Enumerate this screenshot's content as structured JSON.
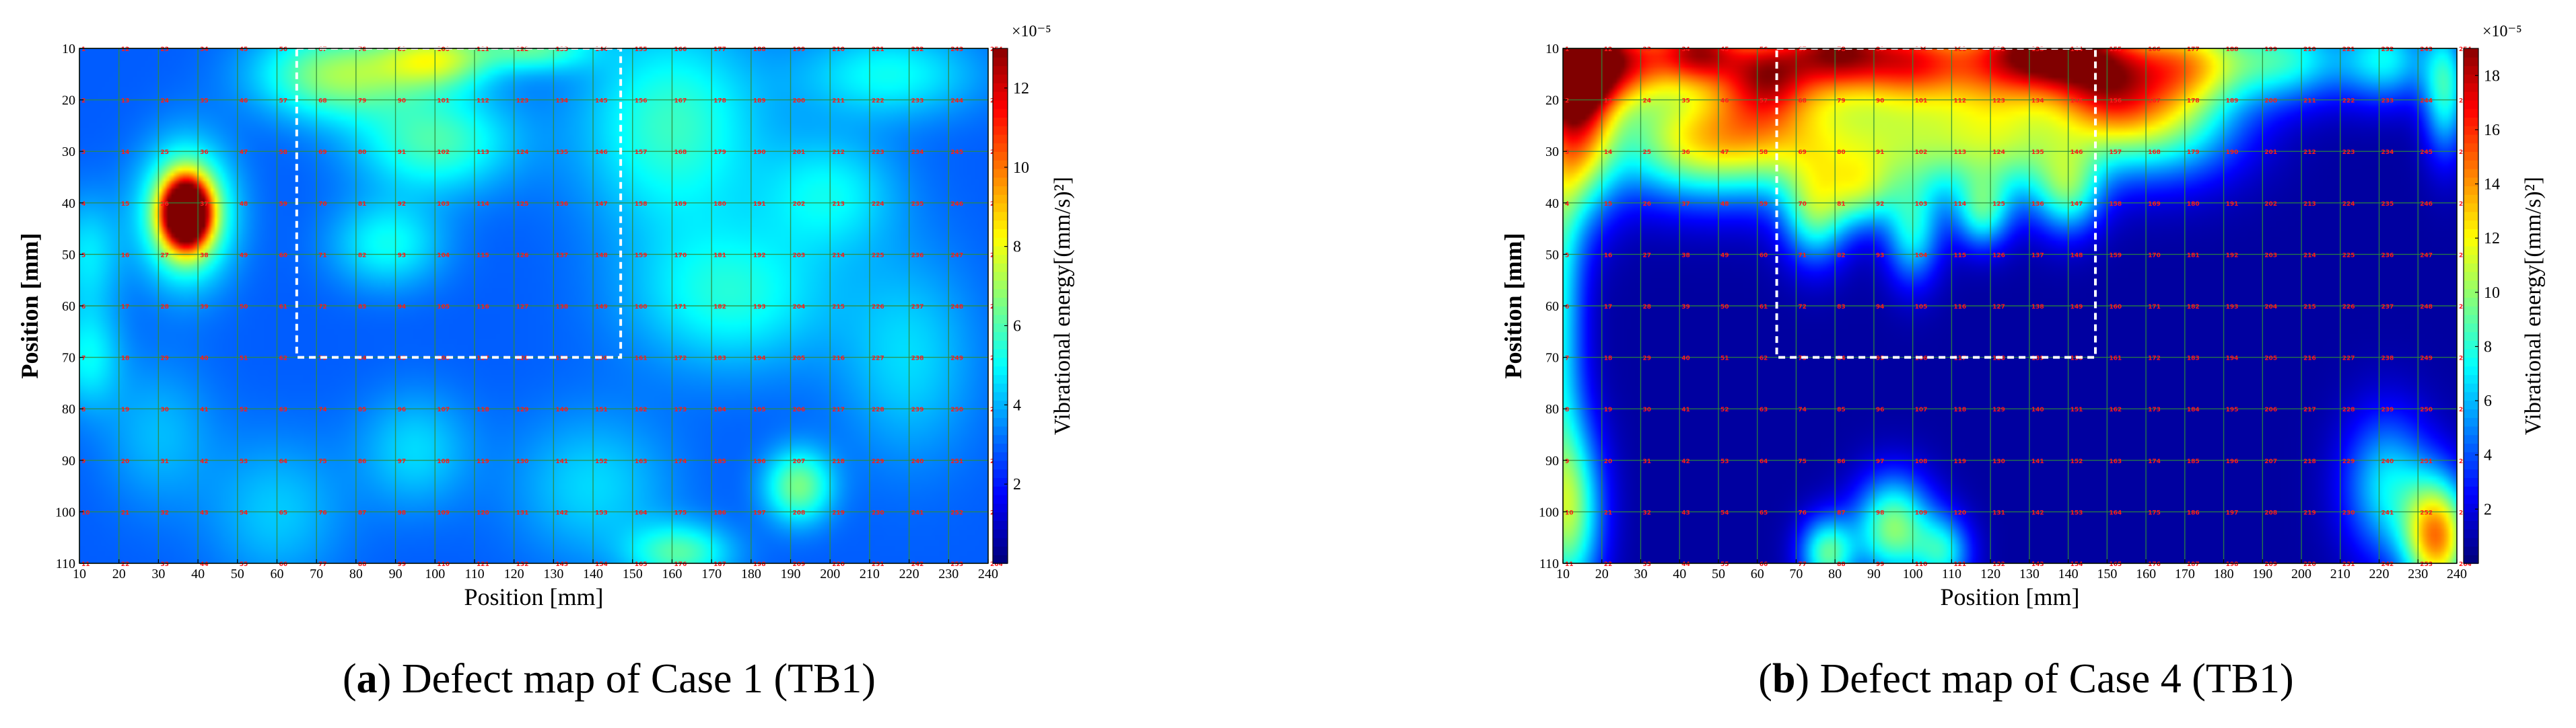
{
  "chart_data": [
    {
      "type": "heatmap",
      "panel": "a",
      "caption_letter": "a",
      "caption_text": " Defect map of Case 1 (TB1)",
      "xlabel": "Position [mm]",
      "ylabel": "Position [mm]",
      "x_ticks": [
        10,
        20,
        30,
        40,
        50,
        60,
        70,
        80,
        90,
        100,
        110,
        120,
        130,
        140,
        150,
        160,
        170,
        180,
        190,
        200,
        210,
        220,
        230,
        240
      ],
      "y_ticks": [
        10,
        20,
        30,
        40,
        50,
        60,
        70,
        80,
        90,
        100,
        110
      ],
      "xlim": [
        10,
        240
      ],
      "ylim": [
        10,
        110
      ],
      "colorbar_label": "Vibrational energy[(mm/s)²]",
      "colorbar_exponent": "×10⁻⁵",
      "colorbar_ticks": [
        2,
        4,
        6,
        8,
        10,
        12
      ],
      "colorbar_range": [
        0,
        13
      ],
      "defect_region": {
        "x": [
          65,
          147
        ],
        "y": [
          10,
          70
        ]
      },
      "grid_points": "11 rows × 24 columns, numbered 1–231",
      "background_level": 2.8,
      "hotspots": [
        {
          "x": 37,
          "y": 42,
          "value": 13.5,
          "sx": 4,
          "sy": 4.5
        },
        {
          "x": 37,
          "y": 42,
          "value": 5,
          "sx": 8,
          "sy": 9
        },
        {
          "x": 75,
          "y": 15,
          "value": 4,
          "sx": 14,
          "sy": 6
        },
        {
          "x": 100,
          "y": 12,
          "value": 4.2,
          "sx": 10,
          "sy": 4
        },
        {
          "x": 125,
          "y": 10,
          "value": 3,
          "sx": 10,
          "sy": 3
        },
        {
          "x": 100,
          "y": 28,
          "value": 3,
          "sx": 14,
          "sy": 7
        },
        {
          "x": 88,
          "y": 48,
          "value": 2.2,
          "sx": 10,
          "sy": 6
        },
        {
          "x": 160,
          "y": 25,
          "value": 2.8,
          "sx": 16,
          "sy": 14
        },
        {
          "x": 175,
          "y": 58,
          "value": 2.4,
          "sx": 18,
          "sy": 10
        },
        {
          "x": 215,
          "y": 15,
          "value": 2.2,
          "sx": 16,
          "sy": 6
        },
        {
          "x": 200,
          "y": 38,
          "value": 2,
          "sx": 12,
          "sy": 8
        },
        {
          "x": 220,
          "y": 70,
          "value": 1.6,
          "sx": 12,
          "sy": 14
        },
        {
          "x": 192,
          "y": 95,
          "value": 3.6,
          "sx": 6,
          "sy": 5
        },
        {
          "x": 162,
          "y": 108,
          "value": 3,
          "sx": 9,
          "sy": 4
        },
        {
          "x": 12,
          "y": 50,
          "value": 1.8,
          "sx": 6,
          "sy": 8
        },
        {
          "x": 12,
          "y": 70,
          "value": 2,
          "sx": 6,
          "sy": 7
        },
        {
          "x": 140,
          "y": 95,
          "value": 1.6,
          "sx": 14,
          "sy": 10
        },
        {
          "x": 95,
          "y": 88,
          "value": 1.6,
          "sx": 10,
          "sy": 8
        },
        {
          "x": 60,
          "y": 100,
          "value": 1.4,
          "sx": 12,
          "sy": 10
        },
        {
          "x": 30,
          "y": 85,
          "value": 1.2,
          "sx": 10,
          "sy": 10
        }
      ]
    },
    {
      "type": "heatmap",
      "panel": "b",
      "caption_letter": "b",
      "caption_text": " Defect map of Case 4 (TB1)",
      "xlabel": "Position [mm]",
      "ylabel": "Position [mm]",
      "x_ticks": [
        10,
        20,
        30,
        40,
        50,
        60,
        70,
        80,
        90,
        100,
        110,
        120,
        130,
        140,
        150,
        160,
        170,
        180,
        190,
        200,
        210,
        220,
        230,
        240
      ],
      "y_ticks": [
        10,
        20,
        30,
        40,
        50,
        60,
        70,
        80,
        90,
        100,
        110
      ],
      "xlim": [
        10,
        240
      ],
      "ylim": [
        10,
        110
      ],
      "colorbar_label": "Vibrational energy[(mm/s)²]",
      "colorbar_exponent": "×10⁻⁵",
      "colorbar_ticks": [
        2,
        4,
        6,
        8,
        10,
        12,
        14,
        16,
        18
      ],
      "colorbar_range": [
        0,
        19
      ],
      "defect_region": {
        "x": [
          65,
          147
        ],
        "y": [
          10,
          70
        ]
      },
      "grid_points": "11 rows × 24 columns, numbered 1–231",
      "background_level": 0.6,
      "hotspots": [
        {
          "x": 12,
          "y": 12,
          "value": 20,
          "sx": 8,
          "sy": 7
        },
        {
          "x": 14,
          "y": 25,
          "value": 11,
          "sx": 7,
          "sy": 12
        },
        {
          "x": 45,
          "y": 10,
          "value": 14,
          "sx": 8,
          "sy": 5
        },
        {
          "x": 28,
          "y": 12,
          "value": 11,
          "sx": 8,
          "sy": 6
        },
        {
          "x": 80,
          "y": 10,
          "value": 15,
          "sx": 10,
          "sy": 6
        },
        {
          "x": 100,
          "y": 12,
          "value": 12,
          "sx": 10,
          "sy": 6
        },
        {
          "x": 62,
          "y": 14,
          "value": 10,
          "sx": 8,
          "sy": 6
        },
        {
          "x": 135,
          "y": 10,
          "value": 14,
          "sx": 10,
          "sy": 6
        },
        {
          "x": 150,
          "y": 15,
          "value": 12,
          "sx": 10,
          "sy": 8
        },
        {
          "x": 120,
          "y": 12,
          "value": 9,
          "sx": 10,
          "sy": 7
        },
        {
          "x": 170,
          "y": 12,
          "value": 9,
          "sx": 10,
          "sy": 6
        },
        {
          "x": 195,
          "y": 12,
          "value": 7,
          "sx": 12,
          "sy": 6
        },
        {
          "x": 222,
          "y": 12,
          "value": 6,
          "sx": 8,
          "sy": 6
        },
        {
          "x": 237,
          "y": 18,
          "value": 7,
          "sx": 4,
          "sy": 9
        },
        {
          "x": 60,
          "y": 25,
          "value": 8,
          "sx": 14,
          "sy": 9
        },
        {
          "x": 90,
          "y": 28,
          "value": 8,
          "sx": 18,
          "sy": 8
        },
        {
          "x": 125,
          "y": 28,
          "value": 8,
          "sx": 16,
          "sy": 8
        },
        {
          "x": 165,
          "y": 24,
          "value": 8,
          "sx": 14,
          "sy": 8
        },
        {
          "x": 40,
          "y": 28,
          "value": 8,
          "sx": 14,
          "sy": 8
        },
        {
          "x": 75,
          "y": 42,
          "value": 7,
          "sx": 6,
          "sy": 7
        },
        {
          "x": 100,
          "y": 46,
          "value": 6,
          "sx": 5,
          "sy": 7
        },
        {
          "x": 87,
          "y": 38,
          "value": 5,
          "sx": 6,
          "sy": 5
        },
        {
          "x": 118,
          "y": 42,
          "value": 6,
          "sx": 5,
          "sy": 5
        },
        {
          "x": 140,
          "y": 38,
          "value": 6,
          "sx": 6,
          "sy": 6
        },
        {
          "x": 8,
          "y": 60,
          "value": 7,
          "sx": 5,
          "sy": 30
        },
        {
          "x": 12,
          "y": 100,
          "value": 8,
          "sx": 6,
          "sy": 12
        },
        {
          "x": 95,
          "y": 103,
          "value": 9,
          "sx": 7,
          "sy": 7
        },
        {
          "x": 78,
          "y": 108,
          "value": 8,
          "sx": 5,
          "sy": 5
        },
        {
          "x": 108,
          "y": 108,
          "value": 6,
          "sx": 5,
          "sy": 5
        },
        {
          "x": 235,
          "y": 105,
          "value": 13,
          "sx": 6,
          "sy": 8
        },
        {
          "x": 222,
          "y": 95,
          "value": 6,
          "sx": 8,
          "sy": 10
        }
      ]
    }
  ],
  "colorbars": {
    "jet_stops": [
      "#00007f",
      "#0000ff",
      "#007fff",
      "#00ffff",
      "#7fff7f",
      "#ffff00",
      "#ff7f00",
      "#ff0000",
      "#7f0000"
    ]
  }
}
